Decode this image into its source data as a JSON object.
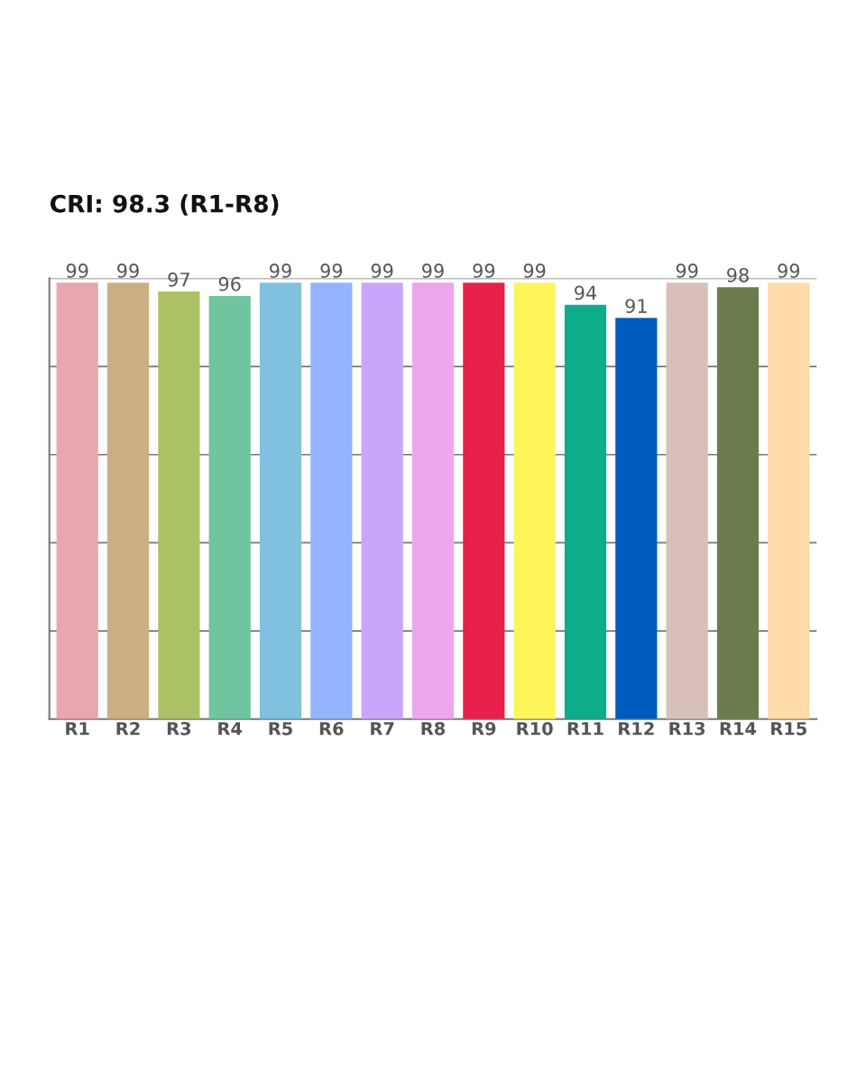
{
  "chart_data": {
    "type": "bar",
    "title": "CRI: 98.3 (R1-R8)",
    "categories": [
      "R1",
      "R2",
      "R3",
      "R4",
      "R5",
      "R6",
      "R7",
      "R8",
      "R9",
      "R10",
      "R11",
      "R12",
      "R13",
      "R14",
      "R15"
    ],
    "values": [
      99,
      99,
      97,
      96,
      99,
      99,
      99,
      99,
      99,
      99,
      94,
      91,
      99,
      98,
      99
    ],
    "colors": [
      "#e8a6ae",
      "#cbaf82",
      "#abc165",
      "#6fc5a0",
      "#7fc1df",
      "#92b5fd",
      "#c9a6fb",
      "#eca6ec",
      "#e8204a",
      "#fdf55a",
      "#0dac8a",
      "#005bbf",
      "#d8bfba",
      "#6b7d4e",
      "#ffdba8"
    ],
    "ylim": [
      0,
      100
    ],
    "yticks": [
      {
        "value": 0,
        "label": null
      },
      {
        "value": 20,
        "label": null
      },
      {
        "value": 40,
        "label": null
      },
      {
        "value": 60,
        "label": null
      },
      {
        "value": 80,
        "label": null
      },
      {
        "value": 100,
        "label": null
      }
    ],
    "grid": "y",
    "data_labels": true,
    "tick_labels": "x"
  }
}
